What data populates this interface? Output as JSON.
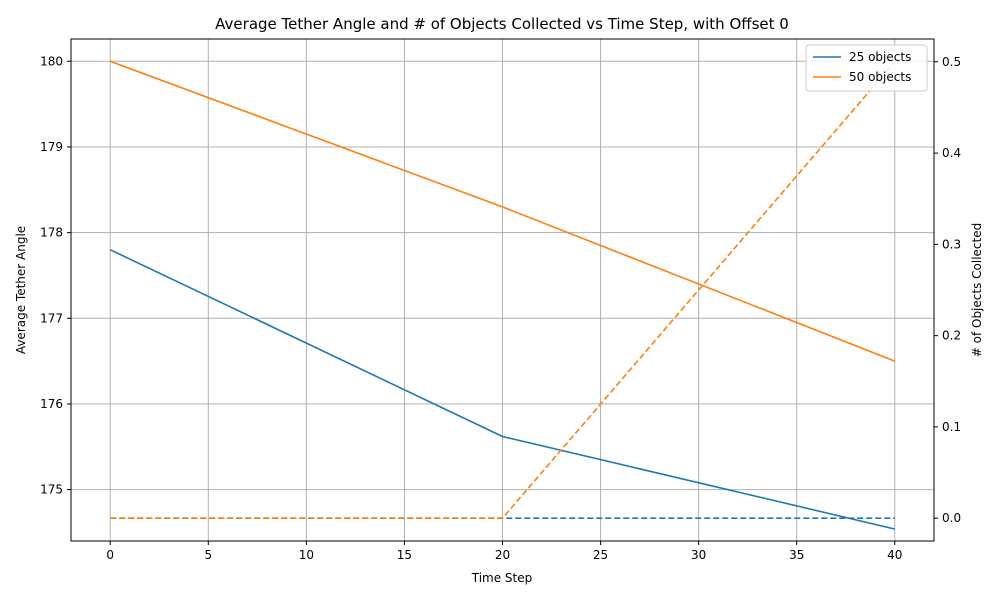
{
  "chart_data": {
    "type": "line",
    "title": "Average Tether Angle and # of Objects Collected vs Time Step, with Offset 0",
    "xlabel": "Time Step",
    "ylabel": "Average Tether Angle",
    "y2label": "# of Objects Collected",
    "xlim": [
      -2,
      42
    ],
    "ylim": [
      174.4,
      180.26
    ],
    "y2lim": [
      -0.025,
      0.525
    ],
    "x_ticks": [
      0,
      5,
      10,
      15,
      20,
      25,
      30,
      35,
      40
    ],
    "x_tick_labels": [
      "0",
      "5",
      "10",
      "15",
      "20",
      "25",
      "30",
      "35",
      "40"
    ],
    "y_ticks": [
      175,
      176,
      177,
      178,
      179,
      180
    ],
    "y_tick_labels": [
      "175",
      "176",
      "177",
      "178",
      "179",
      "180"
    ],
    "y2_ticks": [
      0.0,
      0.1,
      0.2,
      0.3,
      0.4,
      0.5
    ],
    "y2_tick_labels": [
      "0.0",
      "0.1",
      "0.2",
      "0.3",
      "0.4",
      "0.5"
    ],
    "grid": true,
    "legend_position": "top-right",
    "series": [
      {
        "name": "25 objects",
        "axis": "left",
        "style": "solid",
        "color": "#1f77b4",
        "x": [
          0,
          20,
          40
        ],
        "y": [
          177.8,
          175.62,
          174.54
        ]
      },
      {
        "name": "50 objects",
        "axis": "left",
        "style": "solid",
        "color": "#ff7f0e",
        "x": [
          0,
          20,
          40
        ],
        "y": [
          180.0,
          178.3,
          176.5
        ]
      },
      {
        "axis": "right",
        "style": "dashed",
        "color": "#1f77b4",
        "x": [
          0,
          20,
          40
        ],
        "y": [
          0.0,
          0.0,
          0.0
        ]
      },
      {
        "axis": "right",
        "style": "dashed",
        "color": "#ff7f0e",
        "x": [
          0,
          20,
          40
        ],
        "y": [
          0.0,
          0.0,
          0.5
        ]
      }
    ]
  }
}
